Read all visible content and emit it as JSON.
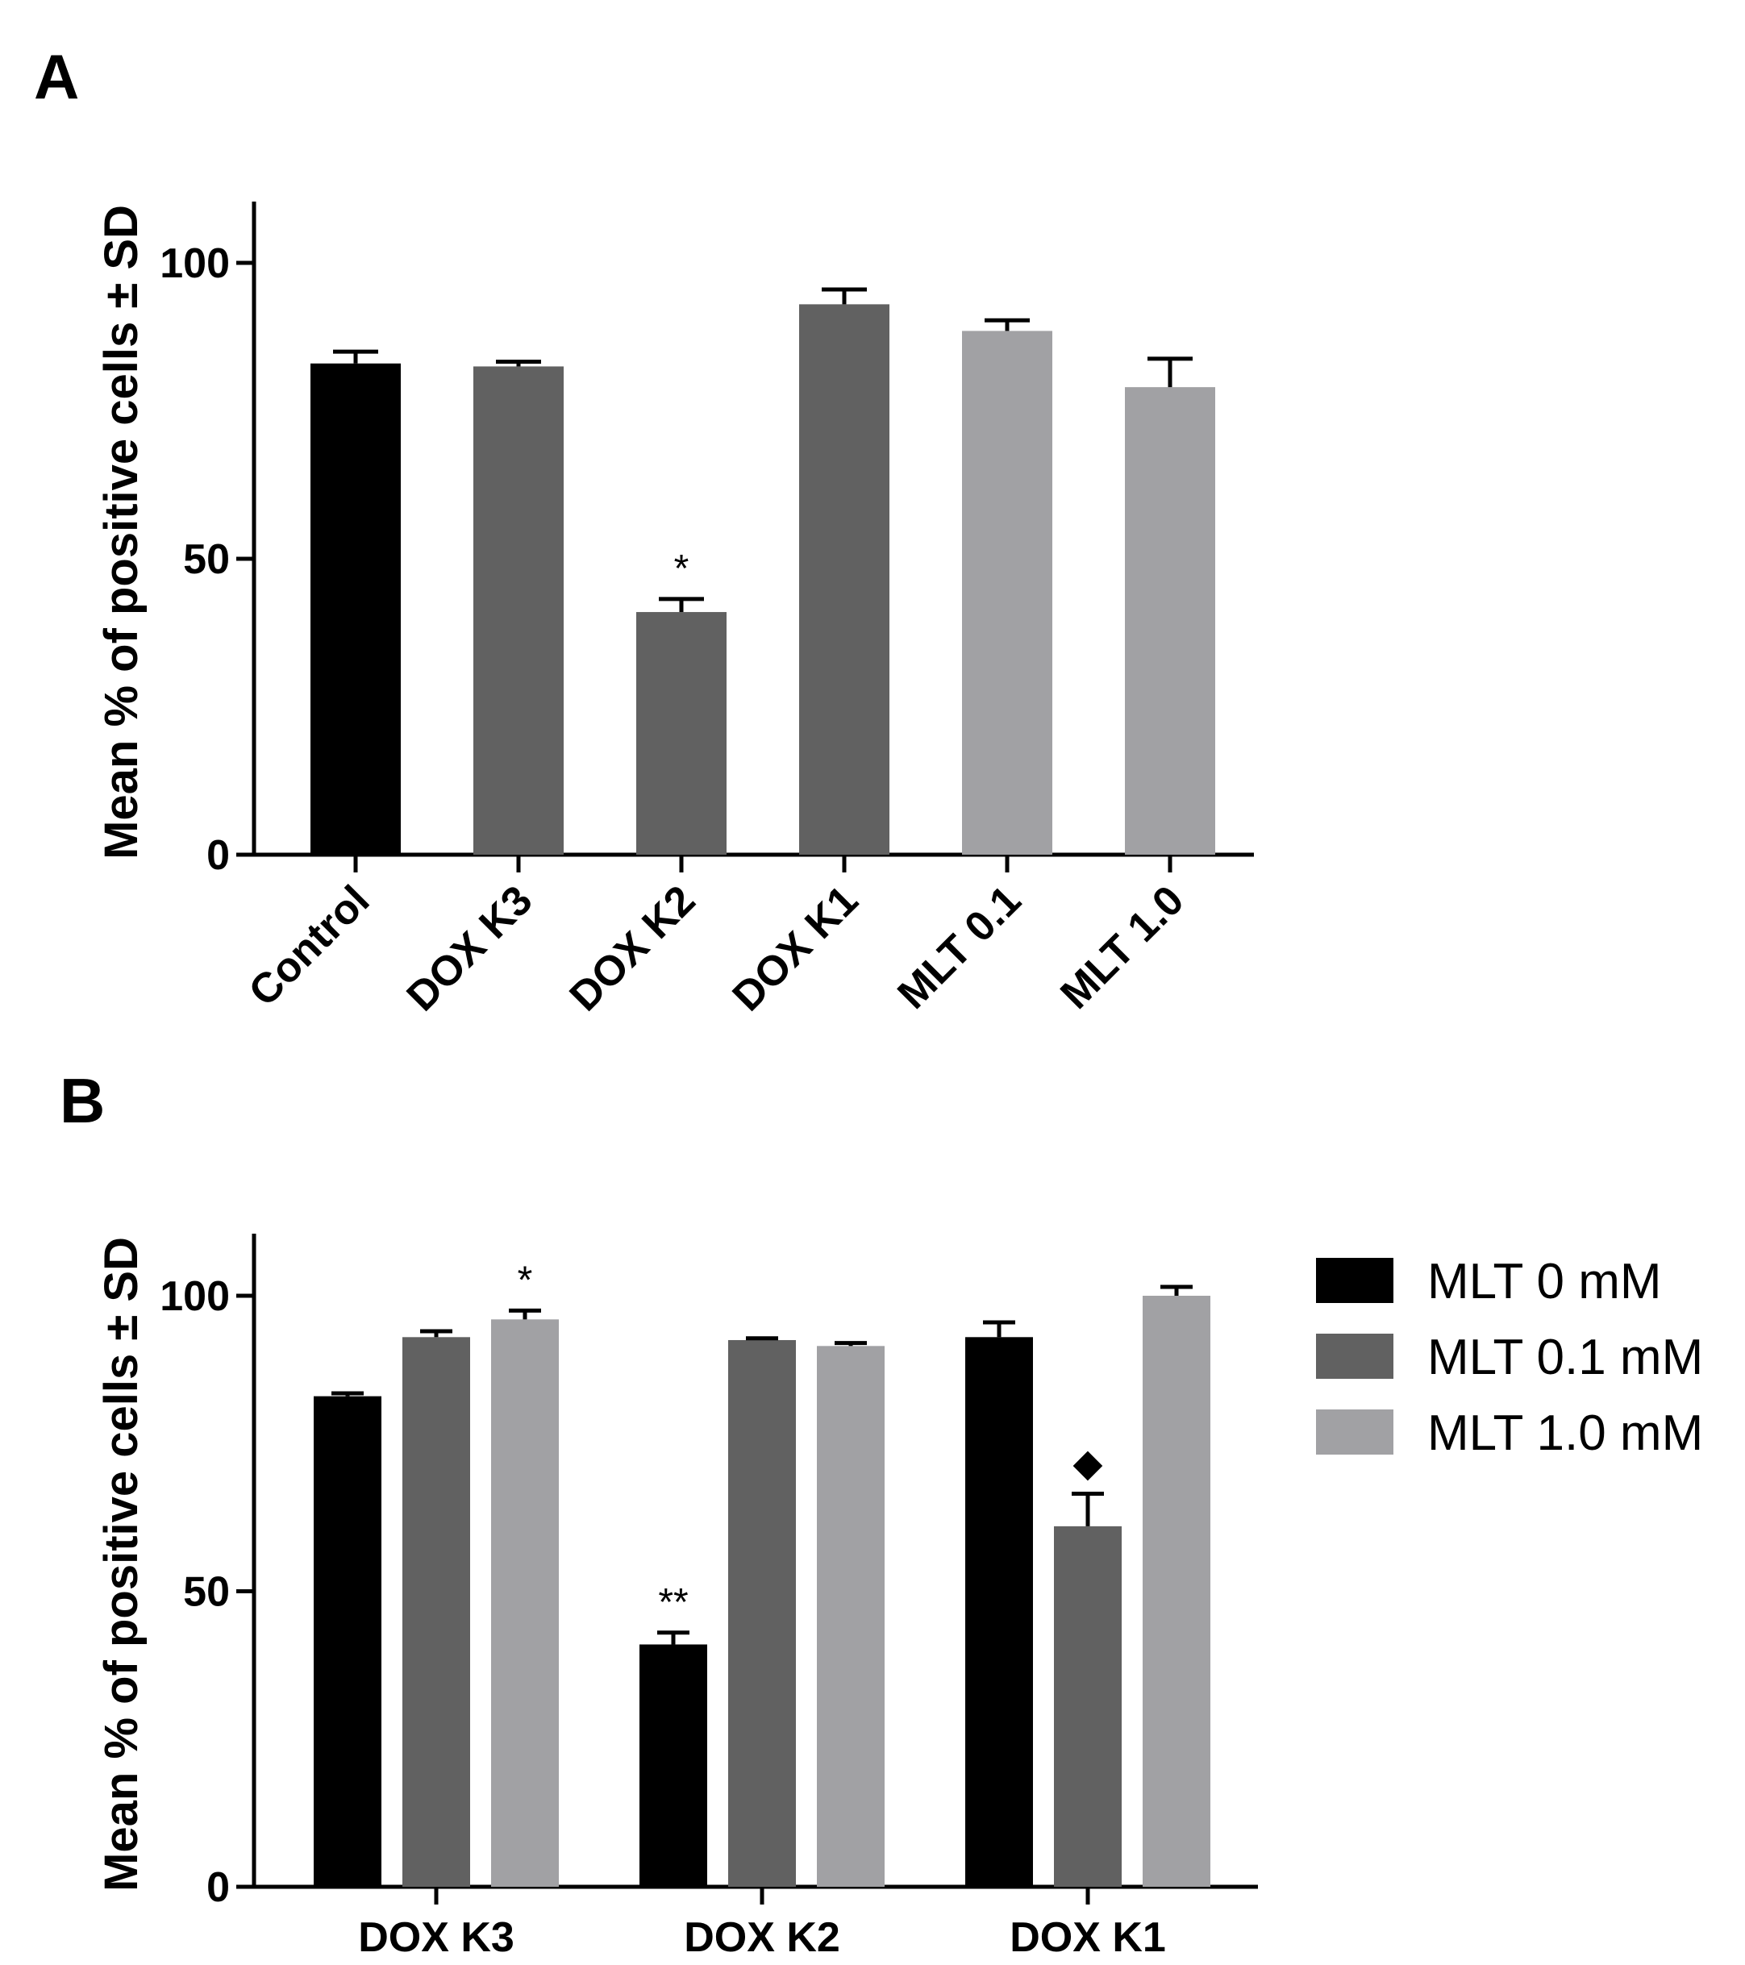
{
  "chart_data": [
    {
      "panel": "A",
      "type": "bar",
      "categories": [
        "Control",
        "DOX K3",
        "DOX K2",
        "DOX K1",
        "MLT 0.1",
        "MLT 1.0"
      ],
      "values": [
        83,
        82.5,
        41,
        93,
        88.5,
        79
      ],
      "errors": [
        2,
        0.8,
        2.2,
        2.5,
        1.8,
        4.8
      ],
      "colors": [
        "#000000",
        "#616161",
        "#616161",
        "#616161",
        "#a1a1a4",
        "#a1a1a4"
      ],
      "annotations": [
        "",
        "",
        "*",
        "",
        "",
        ""
      ],
      "ylabel": "Mean %  of positive cells  ± SD",
      "ylim": [
        0,
        110
      ],
      "yticks": [
        0,
        50,
        100
      ]
    },
    {
      "panel": "B",
      "type": "bar",
      "categories": [
        "DOX K3",
        "DOX K2",
        "DOX K1"
      ],
      "series": [
        {
          "name": "MLT 0 mM",
          "color": "#000000",
          "values": [
            83,
            41,
            93
          ],
          "errors": [
            0.5,
            2,
            2.5
          ],
          "annotations": [
            "",
            "**",
            ""
          ]
        },
        {
          "name": "MLT 0.1 mM",
          "color": "#616161",
          "values": [
            93,
            92.5,
            61
          ],
          "errors": [
            1,
            0.3,
            5.5
          ],
          "annotations": [
            "",
            "",
            "◆"
          ]
        },
        {
          "name": "MLT 1.0 mM",
          "color": "#a1a1a4",
          "values": [
            96,
            91.5,
            100
          ],
          "errors": [
            1.5,
            0.5,
            1.5
          ],
          "annotations": [
            "*",
            "",
            ""
          ]
        }
      ],
      "ylabel": "Mean %  of positive cells  ± SD",
      "ylim": [
        0,
        110
      ],
      "yticks": [
        0,
        50,
        100
      ],
      "legend_position": "right"
    }
  ]
}
